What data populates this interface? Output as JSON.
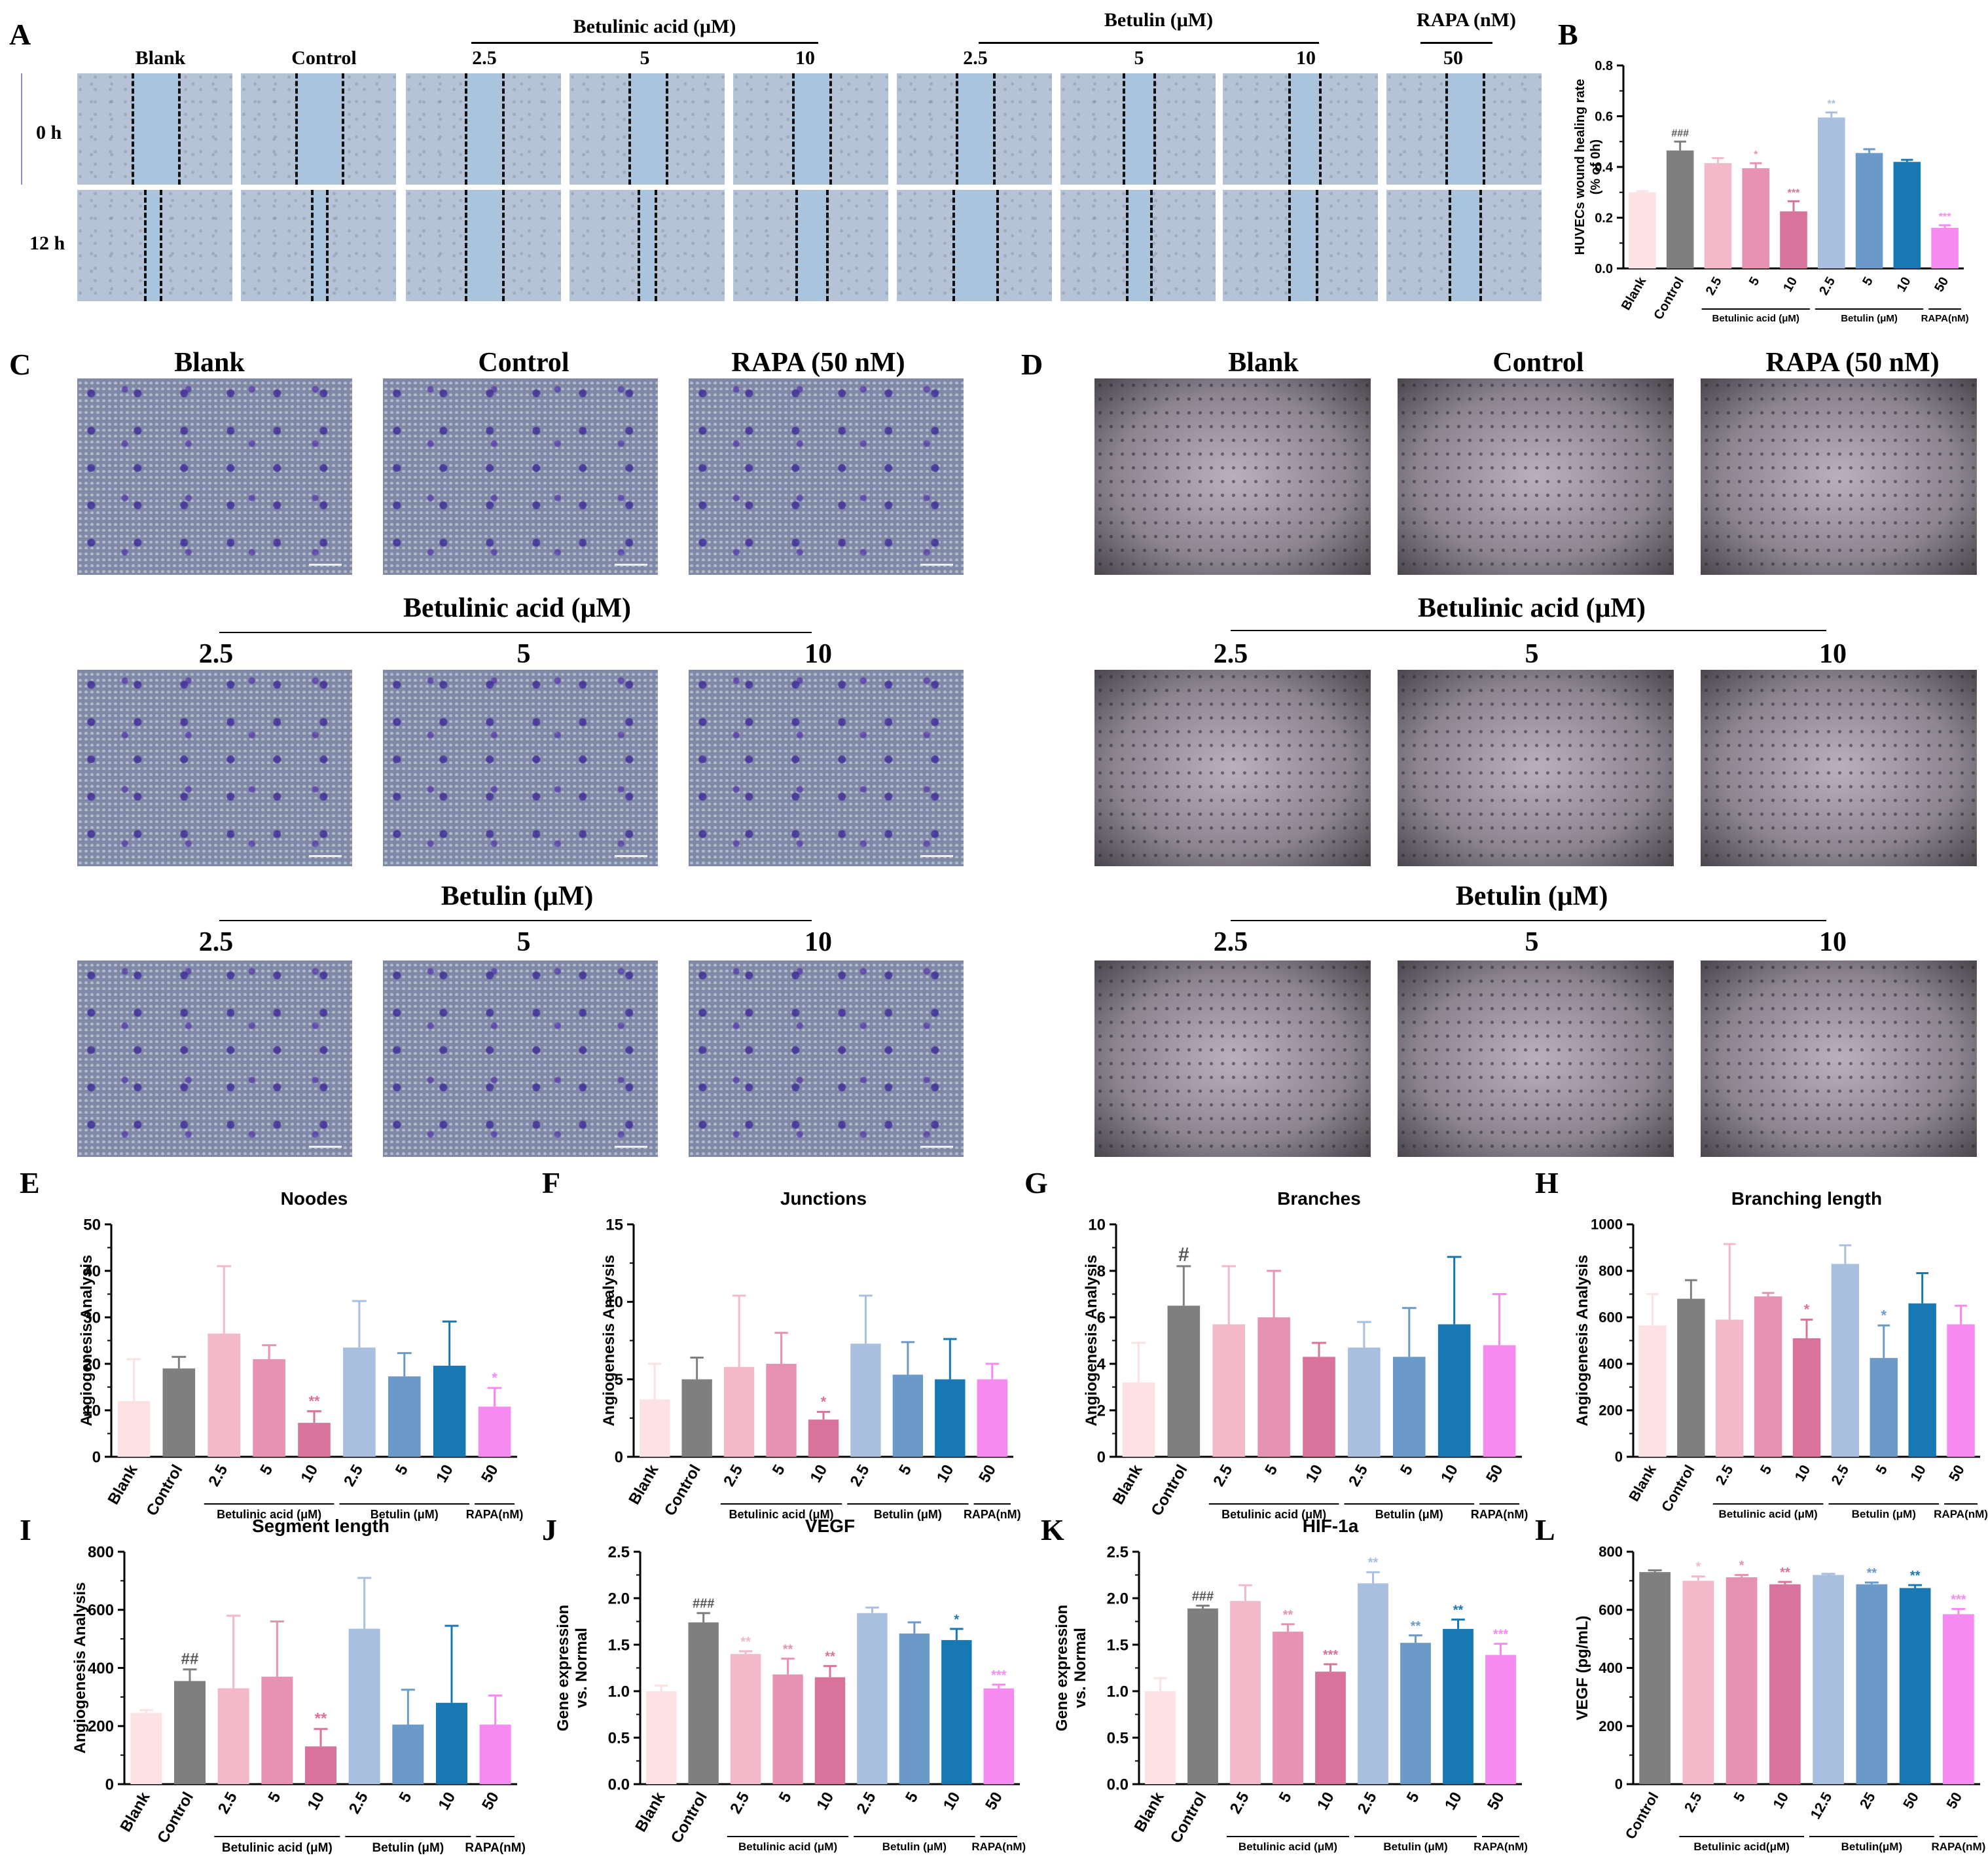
{
  "panel_letters": [
    "A",
    "B",
    "C",
    "D",
    "E",
    "F",
    "G",
    "H",
    "I",
    "J",
    "K",
    "L"
  ],
  "panelA": {
    "top_labels": [
      "Blank",
      "Control",
      "2.5",
      "5",
      "10",
      "2.5",
      "5",
      "10",
      "50"
    ],
    "group_labels": [
      "Betulinic acid (μM)",
      "Betulin (μM)",
      "RAPA (nM)"
    ],
    "row_labels": [
      "0 h",
      "12 h"
    ]
  },
  "panelC": {
    "row1_labels": [
      "Blank",
      "Control",
      "RAPA (50 nM)"
    ],
    "group1": "Betulinic acid (μM)",
    "row2_labels": [
      "2.5",
      "5",
      "10"
    ],
    "group2": "Betulin (μM)",
    "row3_labels": [
      "2.5",
      "5",
      "10"
    ]
  },
  "panelD": {
    "row1_labels": [
      "Blank",
      "Control",
      "RAPA (50 nM)"
    ],
    "group1": "Betulinic acid (μM)",
    "row2_labels": [
      "2.5",
      "5",
      "10"
    ],
    "group2": "Betulin (μM)",
    "row3_labels": [
      "2.5",
      "5",
      "10"
    ]
  },
  "colors": {
    "blank": "#fde1e4",
    "control": "#7f7f7f",
    "ba1": "#f4b8cb",
    "ba2": "#e892b3",
    "ba3": "#d9739b",
    "bt1": "#a9bfdf",
    "bt2": "#6b9ac9",
    "bt3": "#1878b4",
    "rapa": "#f78af0"
  },
  "chart_data": [
    {
      "id": "B",
      "type": "bar",
      "title": "",
      "ylabel": "HUVECs wound healing rate\n(% of 0h)",
      "ylim": [
        0,
        0.8
      ],
      "yticks": [
        0.0,
        0.2,
        0.4,
        0.6,
        0.8
      ],
      "categories": [
        "Blank",
        "Control",
        "2.5",
        "5",
        "10",
        "2.5",
        "5",
        "10",
        "50"
      ],
      "values": [
        0.3,
        0.465,
        0.415,
        0.395,
        0.225,
        0.595,
        0.455,
        0.42,
        0.16
      ],
      "errors": [
        0.005,
        0.035,
        0.02,
        0.02,
        0.04,
        0.02,
        0.015,
        0.008,
        0.01
      ],
      "annotations": [
        "",
        "###",
        "",
        "*",
        "***",
        "**",
        "",
        "",
        "***"
      ],
      "groups": [
        {
          "label": "Betulinic acid (μM)",
          "from": 2,
          "to": 4
        },
        {
          "label": "Betulin (μM)",
          "from": 5,
          "to": 7
        },
        {
          "label": "RAPA(nM)",
          "from": 8,
          "to": 8
        }
      ]
    },
    {
      "id": "E",
      "type": "bar",
      "title": "Noodes",
      "ylabel": "Angiogenesis Analysis",
      "ylim": [
        0,
        50
      ],
      "yticks": [
        0,
        10,
        20,
        30,
        40,
        50
      ],
      "categories": [
        "Blank",
        "Control",
        "2.5",
        "5",
        "10",
        "2.5",
        "5",
        "10",
        "50"
      ],
      "values": [
        12,
        19,
        26.5,
        21,
        7.3,
        23.5,
        17.3,
        19.6,
        10.8
      ],
      "errors": [
        9,
        2.5,
        14.5,
        3,
        2.5,
        10,
        5,
        9.5,
        4
      ],
      "annotations": [
        "",
        "",
        "",
        "",
        "**",
        "",
        "",
        "",
        "*"
      ],
      "groups": [
        {
          "label": "Betulinic acid (μM)",
          "from": 2,
          "to": 4
        },
        {
          "label": "Betulin (μM)",
          "from": 5,
          "to": 7
        },
        {
          "label": "RAPA(nM)",
          "from": 8,
          "to": 8
        }
      ]
    },
    {
      "id": "F",
      "type": "bar",
      "title": "Junctions",
      "ylabel": "Angiogenesis Analysis",
      "ylim": [
        0,
        15
      ],
      "yticks": [
        0,
        5,
        10,
        15
      ],
      "categories": [
        "Blank",
        "Control",
        "2.5",
        "5",
        "10",
        "2.5",
        "5",
        "10",
        "50"
      ],
      "values": [
        3.7,
        5,
        5.8,
        6,
        2.4,
        7.3,
        5.3,
        5,
        5
      ],
      "errors": [
        2.3,
        1.4,
        4.6,
        2,
        0.5,
        3.1,
        2.1,
        2.6,
        1
      ],
      "annotations": [
        "",
        "",
        "",
        "",
        "*",
        "",
        "",
        "",
        ""
      ],
      "groups": [
        {
          "label": "Betulinic acid (μM)",
          "from": 2,
          "to": 4
        },
        {
          "label": "Betulin (μM)",
          "from": 5,
          "to": 7
        },
        {
          "label": "RAPA(nM)",
          "from": 8,
          "to": 8
        }
      ]
    },
    {
      "id": "G",
      "type": "bar",
      "title": "Branches",
      "ylabel": "Angiogenesis Analysis",
      "ylim": [
        0,
        10
      ],
      "yticks": [
        0,
        2,
        4,
        6,
        8,
        10
      ],
      "categories": [
        "Blank",
        "Control",
        "2.5",
        "5",
        "10",
        "2.5",
        "5",
        "10",
        "50"
      ],
      "values": [
        3.2,
        6.5,
        5.7,
        6,
        4.3,
        4.7,
        4.3,
        5.7,
        4.8
      ],
      "errors": [
        1.7,
        1.7,
        2.5,
        2,
        0.6,
        1.1,
        2.1,
        2.9,
        2.2
      ],
      "annotations": [
        "",
        "#",
        "",
        "",
        "",
        "",
        "",
        "",
        ""
      ],
      "groups": [
        {
          "label": "Betulinic acid (μM)",
          "from": 2,
          "to": 4
        },
        {
          "label": "Betulin (μM)",
          "from": 5,
          "to": 7
        },
        {
          "label": "RAPA(nM)",
          "from": 8,
          "to": 8
        }
      ]
    },
    {
      "id": "H",
      "type": "bar",
      "title": "Branching length",
      "ylabel": "Angiogenesis Analysis",
      "ylim": [
        0,
        1000
      ],
      "yticks": [
        0,
        200,
        400,
        600,
        800,
        1000
      ],
      "categories": [
        "Blank",
        "Control",
        "2.5",
        "5",
        "10",
        "2.5",
        "5",
        "10",
        "50"
      ],
      "values": [
        565,
        680,
        590,
        690,
        510,
        830,
        425,
        660,
        570
      ],
      "errors": [
        135,
        80,
        325,
        15,
        80,
        80,
        140,
        130,
        80
      ],
      "annotations": [
        "",
        "",
        "",
        "",
        "*",
        "",
        "*",
        "",
        ""
      ],
      "groups": [
        {
          "label": "Betulinic acid (μM)",
          "from": 2,
          "to": 4
        },
        {
          "label": "Betulin (μM)",
          "from": 5,
          "to": 7
        },
        {
          "label": "RAPA(nM)",
          "from": 8,
          "to": 8
        }
      ]
    },
    {
      "id": "I",
      "type": "bar",
      "title": "Segment length",
      "ylabel": "Angiogenesis Analysis",
      "ylim": [
        0,
        800
      ],
      "yticks": [
        0,
        200,
        400,
        600,
        800
      ],
      "categories": [
        "Blank",
        "Control",
        "2.5",
        "5",
        "10",
        "2.5",
        "5",
        "10",
        "50"
      ],
      "values": [
        245,
        355,
        330,
        370,
        130,
        535,
        205,
        280,
        205
      ],
      "errors": [
        10,
        40,
        250,
        190,
        60,
        175,
        120,
        265,
        100
      ],
      "annotations": [
        "",
        "##",
        "",
        "",
        "**",
        "",
        "",
        "",
        ""
      ],
      "groups": [
        {
          "label": "Betulinic acid (μM)",
          "from": 2,
          "to": 4
        },
        {
          "label": "Betulin (μM)",
          "from": 5,
          "to": 7
        },
        {
          "label": "RAPA(nM)",
          "from": 8,
          "to": 8
        }
      ]
    },
    {
      "id": "J",
      "type": "bar",
      "title": "VEGF",
      "ylabel": "Gene expression\nvs. Normal",
      "ylim": [
        0,
        2.5
      ],
      "yticks": [
        0.0,
        0.5,
        1.0,
        1.5,
        2.0,
        2.5
      ],
      "categories": [
        "Blank",
        "Control",
        "2.5",
        "5",
        "10",
        "2.5",
        "5",
        "10",
        "50"
      ],
      "values": [
        1.0,
        1.74,
        1.4,
        1.18,
        1.15,
        1.84,
        1.62,
        1.55,
        1.03
      ],
      "errors": [
        0.06,
        0.1,
        0.03,
        0.17,
        0.12,
        0.06,
        0.12,
        0.12,
        0.04
      ],
      "annotations": [
        "",
        "###",
        "**",
        "**",
        "**",
        "",
        "",
        "*",
        "***"
      ],
      "groups": [
        {
          "label": "Betulinic acid (μM)",
          "from": 2,
          "to": 4
        },
        {
          "label": "Betulin (μM)",
          "from": 5,
          "to": 7
        },
        {
          "label": "RAPA(nM)",
          "from": 8,
          "to": 8
        }
      ]
    },
    {
      "id": "K",
      "type": "bar",
      "title": "HIF-1a",
      "ylabel": "Gene expression\nvs. Normal",
      "ylim": [
        0,
        2.5
      ],
      "yticks": [
        0.0,
        0.5,
        1.0,
        1.5,
        2.0,
        2.5
      ],
      "categories": [
        "Blank",
        "Control",
        "2.5",
        "5",
        "10",
        "2.5",
        "5",
        "10",
        "50"
      ],
      "values": [
        1.0,
        1.89,
        1.97,
        1.64,
        1.21,
        2.16,
        1.52,
        1.67,
        1.39
      ],
      "errors": [
        0.14,
        0.03,
        0.17,
        0.08,
        0.08,
        0.12,
        0.08,
        0.1,
        0.12
      ],
      "annotations": [
        "",
        "###",
        "",
        "**",
        "***",
        "**",
        "**",
        "**",
        "***"
      ],
      "groups": [
        {
          "label": "Betulinic acid (μM)",
          "from": 2,
          "to": 4
        },
        {
          "label": "Betulin (μM)",
          "from": 5,
          "to": 7
        },
        {
          "label": "RAPA(nM)",
          "from": 8,
          "to": 8
        }
      ]
    },
    {
      "id": "L",
      "type": "bar",
      "title": "",
      "ylabel": "VEGF (pg/mL)",
      "ylim": [
        0,
        800
      ],
      "yticks": [
        0,
        200,
        400,
        600,
        800
      ],
      "categories": [
        "Control",
        "2.5",
        "5",
        "10",
        "12.5",
        "25",
        "50",
        "50"
      ],
      "values": [
        730,
        700,
        712,
        688,
        720,
        688,
        675,
        585
      ],
      "errors": [
        6,
        15,
        8,
        8,
        4,
        6,
        10,
        18
      ],
      "annotations": [
        "",
        "*",
        "*",
        "**",
        "",
        "**",
        "**",
        "***"
      ],
      "groups": [
        {
          "label": "Betulinic acid(μM)",
          "from": 1,
          "to": 3
        },
        {
          "label": "Betulin(μM)",
          "from": 4,
          "to": 6
        },
        {
          "label": "RAPA(nM)",
          "from": 7,
          "to": 7
        }
      ]
    }
  ]
}
